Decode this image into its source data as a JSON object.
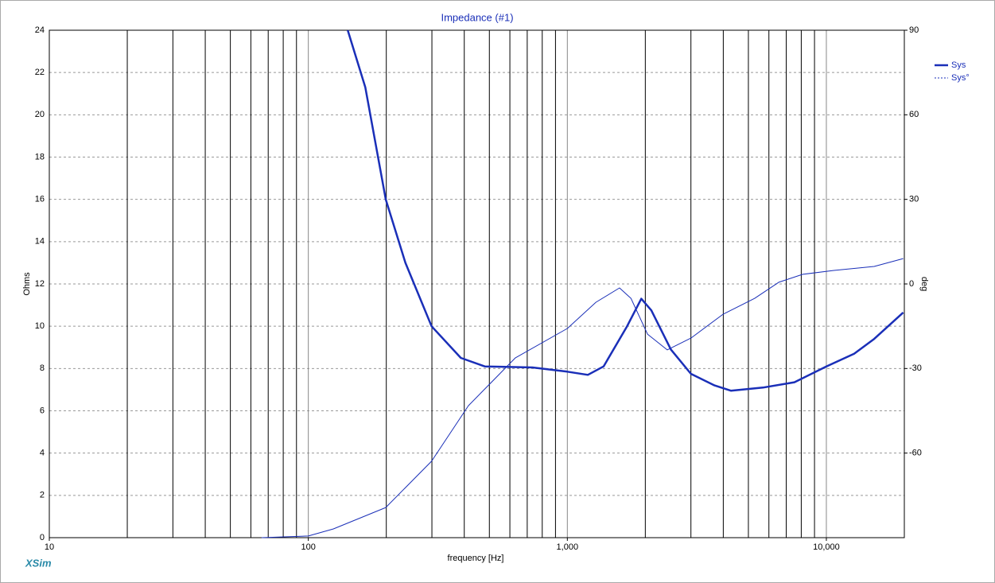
{
  "chart_data": {
    "type": "line",
    "title": "Impedance (#1)",
    "xlabel": "frequency [Hz]",
    "ylabel": "Ohms",
    "y2label": "deg",
    "logo": "XSim",
    "xscale": "log",
    "xlim": [
      10,
      20000
    ],
    "xticks": [
      10,
      100,
      {
        "value": 1000,
        "label": "1,000"
      },
      {
        "value": 10000,
        "label": "10,000"
      }
    ],
    "xgrid": [
      20,
      30,
      40,
      50,
      60,
      70,
      80,
      90,
      100,
      200,
      300,
      400,
      500,
      600,
      700,
      800,
      900,
      1000,
      2000,
      3000,
      4000,
      5000,
      6000,
      7000,
      8000,
      9000,
      10000
    ],
    "ylim": [
      0,
      24
    ],
    "yticks": [
      0,
      2,
      4,
      6,
      8,
      10,
      12,
      14,
      16,
      18,
      20,
      22,
      24
    ],
    "y2lim": [
      -90,
      90
    ],
    "y2ticks": [
      -60,
      -30,
      0,
      30,
      60,
      90
    ],
    "grid": true,
    "legend": "top-right",
    "series": [
      {
        "name": "Sys",
        "color": "#1a2fb8",
        "line_width": 2.5,
        "x": [
          142,
          166,
          199,
          237,
          299,
          388,
          480,
          733,
          1000,
          1200,
          1380,
          1700,
          1930,
          2110,
          2510,
          3000,
          3700,
          4280,
          5690,
          7530,
          10000,
          12800,
          15300,
          19800
        ],
        "values": [
          24,
          21.3,
          16.0,
          13.0,
          10.0,
          8.5,
          8.1,
          8.05,
          7.85,
          7.7,
          8.1,
          10.0,
          11.3,
          10.75,
          8.9,
          7.75,
          7.2,
          6.95,
          7.1,
          7.35,
          8.1,
          8.7,
          9.4,
          10.65
        ]
      },
      {
        "name": "Sys°",
        "color": "#1a2fb8",
        "line_width": 1,
        "axis": "y2",
        "x": [
          66,
          100,
          125,
          199,
          299,
          415,
          630,
          1000,
          1290,
          1590,
          1760,
          2040,
          2430,
          3000,
          4000,
          5290,
          6550,
          8110,
          10700,
          15300,
          19800
        ],
        "values": [
          -90,
          -89.4,
          -86.9,
          -79.3,
          -62.9,
          -43.2,
          -26.2,
          -15.8,
          -6.5,
          -1.4,
          -5.1,
          -17.8,
          -23.4,
          -19.2,
          -10.7,
          -5.1,
          0.6,
          3.4,
          4.8,
          6.2,
          9.0
        ]
      }
    ]
  }
}
